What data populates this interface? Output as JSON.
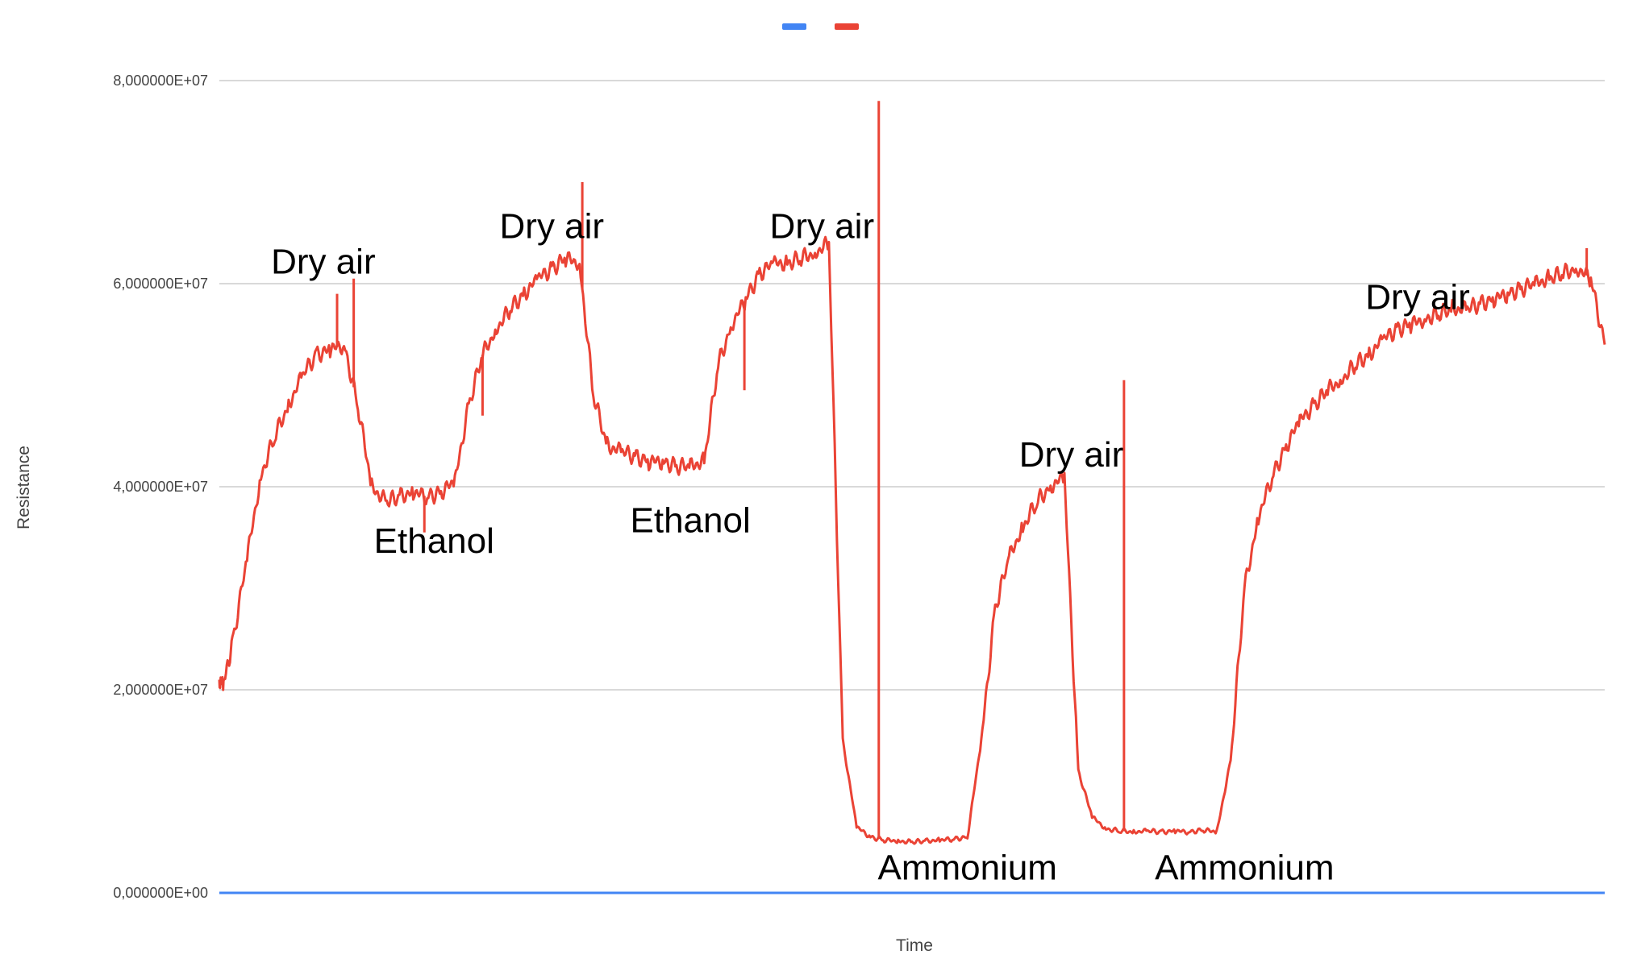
{
  "chart_data": {
    "type": "line",
    "title": "",
    "xlabel": "Time",
    "ylabel": "Resistance",
    "ylim": [
      0,
      80000000
    ],
    "y_ticks": [
      {
        "value": 0,
        "label": "0,000000E+00"
      },
      {
        "value": 20000000,
        "label": "2,000000E+07"
      },
      {
        "value": 40000000,
        "label": "4,000000E+07"
      },
      {
        "value": 60000000,
        "label": "6,000000E+07"
      },
      {
        "value": 80000000,
        "label": "8,000000E+07"
      }
    ],
    "grid": true,
    "legend": "top-center",
    "series": [
      {
        "color": "#4285f4",
        "x": [
          0,
          100
        ],
        "values": [
          0,
          0
        ]
      },
      {
        "color": "#ea4335",
        "x": [
          0,
          0.3,
          1,
          2,
          3,
          4,
          5,
          6,
          7,
          8,
          9,
          10,
          11,
          12,
          13,
          14,
          15,
          16,
          17,
          18,
          19,
          20,
          21,
          22,
          23,
          24,
          25,
          26,
          27,
          28,
          29,
          30,
          31,
          32,
          33,
          34,
          35,
          36,
          37,
          38,
          39,
          40,
          41,
          42,
          43,
          44,
          45,
          46,
          47,
          48,
          49,
          50,
          51,
          52,
          53,
          54,
          55,
          56,
          57,
          58,
          59,
          60,
          61,
          62,
          63,
          64,
          65,
          66,
          67,
          68,
          69,
          70,
          71,
          72,
          73,
          74,
          75,
          76,
          77,
          78,
          79,
          80,
          81,
          82,
          83,
          84,
          85,
          86,
          87,
          88,
          89,
          90,
          91,
          92,
          93,
          94,
          95,
          96,
          97,
          98,
          99,
          100
        ],
        "values": [
          21000000,
          20500000,
          25000000,
          33000000,
          41000000,
          45000000,
          48000000,
          51000000,
          53000000,
          53500000,
          54000000,
          48000000,
          40000000,
          38500000,
          39000000,
          39500000,
          39000000,
          39500000,
          40500000,
          48000000,
          53000000,
          55500000,
          57500000,
          59000000,
          60500000,
          61500000,
          62500000,
          62000000,
          49000000,
          44000000,
          43500000,
          43000000,
          42500000,
          42500000,
          42000000,
          42000000,
          42500000,
          52000000,
          56000000,
          58500000,
          61000000,
          62000000,
          62000000,
          62500000,
          63000000,
          64000000,
          15000000,
          6500000,
          5500000,
          5200000,
          5100000,
          5000000,
          5100000,
          5200000,
          5300000,
          5500000,
          15000000,
          28000000,
          33000000,
          36000000,
          38500000,
          40000000,
          41000000,
          12000000,
          7500000,
          6300000,
          6100000,
          6000000,
          6100000,
          6000000,
          6100000,
          6000000,
          6200000,
          6000000,
          13000000,
          30000000,
          37000000,
          41000000,
          44000000,
          46500000,
          48000000,
          49500000,
          50500000,
          52000000,
          53000000,
          54500000,
          55500000,
          56000000,
          56500000,
          57000000,
          57500000,
          57500000,
          58000000,
          58500000,
          59000000,
          59500000,
          60000000,
          60500000,
          61000000,
          61500000,
          60500000,
          54000000
        ]
      }
    ],
    "annotations": [
      {
        "text": "Dry air",
        "x": 7.5,
        "y": 61000000
      },
      {
        "text": "Ethanol",
        "x": 15.5,
        "y": 33500000
      },
      {
        "text": "Dry air",
        "x": 24,
        "y": 64500000
      },
      {
        "text": "Ethanol",
        "x": 34,
        "y": 35500000
      },
      {
        "text": "Dry air",
        "x": 43.5,
        "y": 64500000
      },
      {
        "text": "Ammonium",
        "x": 54,
        "y": 1300000
      },
      {
        "text": "Dry air",
        "x": 61.5,
        "y": 42000000
      },
      {
        "text": "Ammonium",
        "x": 74,
        "y": 1300000
      },
      {
        "text": "Dry air",
        "x": 86.5,
        "y": 57500000
      }
    ]
  }
}
